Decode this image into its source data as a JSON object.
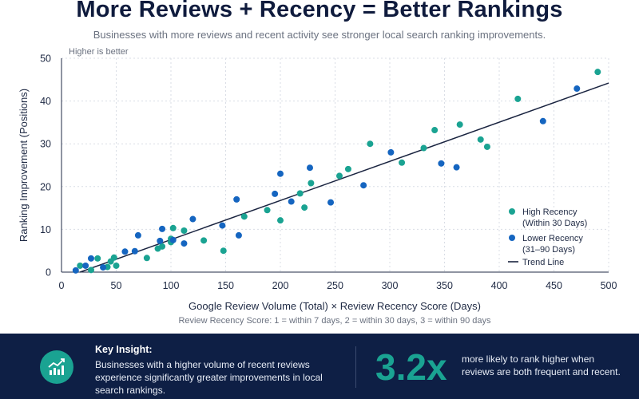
{
  "header": {
    "title": "More Reviews + Recency = Better Rankings",
    "subtitle": "Businesses with more reviews and recent activity see stronger local search ranking improvements."
  },
  "chart_data": {
    "type": "scatter",
    "title": "More Reviews + Recency = Better Rankings",
    "subtitle": "Businesses with more reviews and recent activity see stronger local search ranking improvements.",
    "xlabel": "Google Review Volume (Total) × Review Recency Score (Days)",
    "ylabel": "Ranking Improvement (Positions)",
    "xlim": [
      0,
      500
    ],
    "ylim": [
      0,
      50
    ],
    "xticks": [
      0,
      50,
      100,
      150,
      200,
      250,
      300,
      350,
      400,
      450,
      500
    ],
    "yticks": [
      0,
      10,
      20,
      30,
      40,
      50
    ],
    "grid": true,
    "legend_position": "right",
    "annotation_top": "Higher is better",
    "note": "Review Recency Score: 1 = within 7 days, 2 = within 30 days, 3 = within 90 days",
    "colors": {
      "high": "#1aa392",
      "lower": "#1565c0",
      "trend": "#1a2440"
    },
    "series": [
      {
        "name": "High Recency (Within 30 Days)",
        "legend_lines": [
          "High Recency",
          "(Within 30 Days)"
        ],
        "color": "#1aa392",
        "points": [
          [
            17,
            1.5
          ],
          [
            27,
            0.5
          ],
          [
            33,
            3.2
          ],
          [
            42,
            1.2
          ],
          [
            45,
            2.5
          ],
          [
            48,
            3.4
          ],
          [
            50,
            1.5
          ],
          [
            78,
            3.3
          ],
          [
            88,
            5.5
          ],
          [
            92,
            6.0
          ],
          [
            100,
            7.0
          ],
          [
            100,
            7.8
          ],
          [
            102,
            10.3
          ],
          [
            112,
            9.7
          ],
          [
            130,
            7.4
          ],
          [
            148,
            5.0
          ],
          [
            167,
            13.0
          ],
          [
            188,
            14.5
          ],
          [
            200,
            12.1
          ],
          [
            218,
            18.4
          ],
          [
            222,
            15.1
          ],
          [
            228,
            20.8
          ],
          [
            254,
            22.5
          ],
          [
            262,
            24.1
          ],
          [
            282,
            30.0
          ],
          [
            311,
            25.6
          ],
          [
            331,
            29.0
          ],
          [
            341,
            33.2
          ],
          [
            364,
            34.5
          ],
          [
            383,
            31.0
          ],
          [
            389,
            29.3
          ],
          [
            417,
            40.5
          ],
          [
            490,
            46.8
          ]
        ]
      },
      {
        "name": "Lower Recency (31–90 Days)",
        "legend_lines": [
          "Lower Recency",
          "(31–90 Days)"
        ],
        "color": "#1565c0",
        "points": [
          [
            13,
            0.4
          ],
          [
            22,
            1.5
          ],
          [
            27,
            3.2
          ],
          [
            38,
            1.1
          ],
          [
            58,
            4.8
          ],
          [
            67,
            4.9
          ],
          [
            70,
            8.6
          ],
          [
            90,
            7.3
          ],
          [
            92,
            10.1
          ],
          [
            102,
            7.5
          ],
          [
            112,
            6.7
          ],
          [
            120,
            12.4
          ],
          [
            147,
            10.9
          ],
          [
            160,
            17.0
          ],
          [
            162,
            8.6
          ],
          [
            195,
            18.3
          ],
          [
            200,
            23.0
          ],
          [
            210,
            16.5
          ],
          [
            227,
            24.4
          ],
          [
            246,
            16.3
          ],
          [
            276,
            20.3
          ],
          [
            301,
            28.0
          ],
          [
            347,
            25.4
          ],
          [
            361,
            24.5
          ],
          [
            440,
            35.3
          ],
          [
            471,
            42.9
          ]
        ]
      }
    ],
    "trend_line": {
      "name": "Trend Line",
      "from": [
        17,
        0
      ],
      "to": [
        500,
        44.2
      ]
    }
  },
  "footer": {
    "icon": "trend-up-chart-icon",
    "insight_title": "Key Insight:",
    "insight_text": "Businesses with a higher volume of recent reviews experience significantly greater improvements in local search rankings.",
    "stat_value": "3.2x",
    "stat_text": "more likely to rank higher when reviews are both frequent and recent."
  }
}
